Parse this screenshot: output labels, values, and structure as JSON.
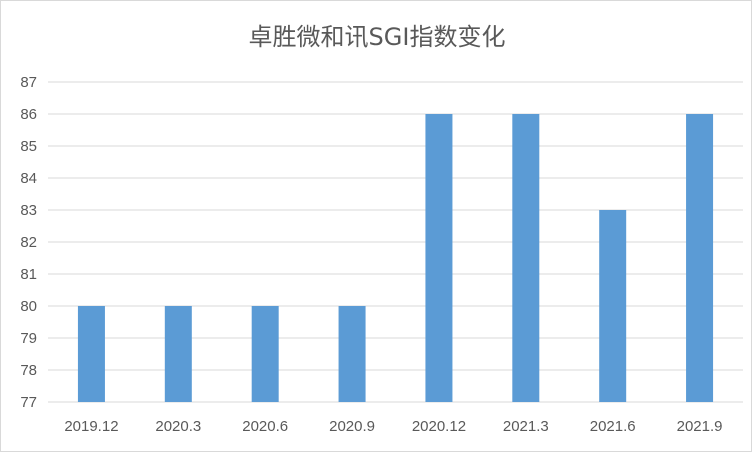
{
  "chart_data": {
    "type": "bar",
    "title": "卓胜微和讯SGI指数变化",
    "xlabel": "",
    "ylabel": "",
    "categories": [
      "2019.12",
      "2020.3",
      "2020.6",
      "2020.9",
      "2020.12",
      "2021.3",
      "2021.6",
      "2021.9"
    ],
    "values": [
      80,
      80,
      80,
      80,
      86,
      86,
      83,
      86
    ],
    "ylim": [
      77,
      87
    ],
    "yticks": [
      77,
      78,
      79,
      80,
      81,
      82,
      83,
      84,
      85,
      86,
      87
    ],
    "grid": true,
    "legend": "none",
    "colors": {
      "bar": "#5b9bd5",
      "grid": "#d9d9d9",
      "text": "#595959"
    }
  }
}
